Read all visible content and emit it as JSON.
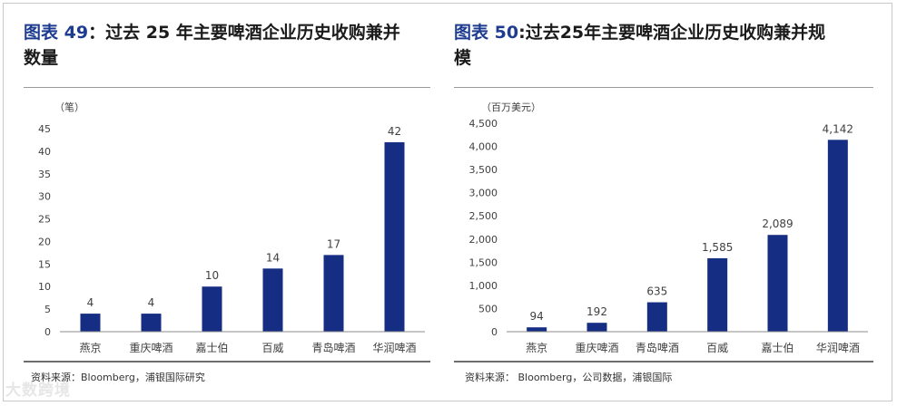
{
  "left_panel": {
    "title_prefix": "图表",
    "title_number": "49",
    "title_sep": "：",
    "title_line1": "过去 25 年主要啤酒企业历史收购兼并",
    "title_line2": "数量",
    "source": "资料来源：Bloomberg，浦银国际研究"
  },
  "right_panel": {
    "title_prefix": "图表",
    "title_number": "50",
    "title_sep": ":",
    "title_line1": "过去25年主要啤酒企业历史收购兼并规",
    "title_line2": "模",
    "source": "资料来源：  Bloomberg，公司数据，浦银国际"
  },
  "watermark": "大数跨境",
  "chart_data": [
    {
      "type": "bar",
      "unit_label": "（笔）",
      "categories": [
        "燕京",
        "重庆啤酒",
        "嘉士伯",
        "百威",
        "青岛啤酒",
        "华润啤酒"
      ],
      "values": [
        4,
        4,
        10,
        14,
        17,
        42
      ],
      "value_labels": [
        "4",
        "4",
        "10",
        "14",
        "17",
        "42"
      ],
      "ylim": [
        0,
        45
      ],
      "yticks": [
        0,
        5,
        10,
        15,
        20,
        25,
        30,
        35,
        40,
        45
      ],
      "ytick_labels": [
        "0",
        "5",
        "10",
        "15",
        "20",
        "25",
        "30",
        "35",
        "40",
        "45"
      ],
      "bar_color": "#152d82"
    },
    {
      "type": "bar",
      "unit_label": "（百万美元）",
      "categories": [
        "燕京",
        "重庆啤酒",
        "青岛啤酒",
        "百威",
        "嘉士伯",
        "华润啤酒"
      ],
      "values": [
        94,
        192,
        635,
        1585,
        2089,
        4142
      ],
      "value_labels": [
        "94",
        "192",
        "635",
        "1,585",
        "2,089",
        "4,142"
      ],
      "ylim": [
        0,
        4500
      ],
      "yticks": [
        0,
        500,
        1000,
        1500,
        2000,
        2500,
        3000,
        3500,
        4000,
        4500
      ],
      "ytick_labels": [
        "0",
        "500",
        "1,000",
        "1,500",
        "2,000",
        "2,500",
        "3,000",
        "3,500",
        "4,000",
        "4,500"
      ],
      "bar_color": "#152d82"
    }
  ]
}
